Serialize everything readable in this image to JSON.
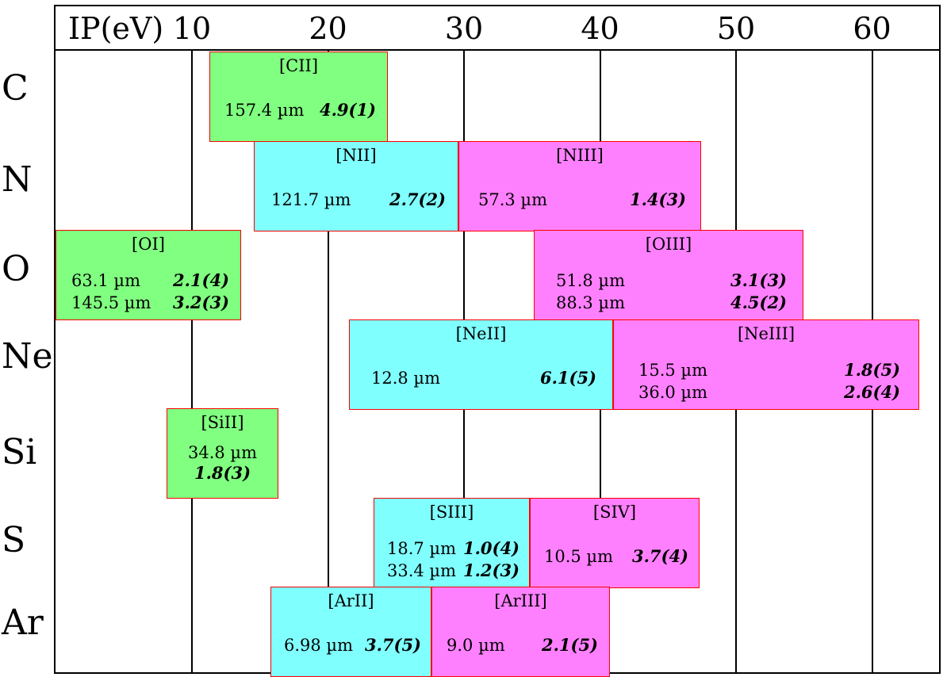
{
  "axis": {
    "title": "IP(eV)",
    "ticks": [
      "10",
      "20",
      "30",
      "40",
      "50",
      "60"
    ]
  },
  "colors": {
    "neutral": "#80ff80",
    "first_ion": "#80ffff",
    "second_ion": "#ff80ff",
    "border": "#ff0000"
  },
  "elements": [
    "C",
    "N",
    "O",
    "Ne",
    "Si",
    "S",
    "Ar"
  ],
  "lines": [
    {
      "element": "C",
      "ion": "[CII]",
      "ip_range": [
        11.26,
        24.38
      ],
      "kind": "neutral",
      "transitions": [
        {
          "wavelength": "157.4 µm",
          "value": "4.9(1)"
        }
      ]
    },
    {
      "element": "N",
      "ion": "[NII]",
      "ip_range": [
        14.53,
        29.6
      ],
      "kind": "first_ion",
      "transitions": [
        {
          "wavelength": "121.7 µm",
          "value": "2.7(2)"
        }
      ]
    },
    {
      "element": "N",
      "ion": "[NIII]",
      "ip_range": [
        29.6,
        47.45
      ],
      "kind": "second_ion",
      "transitions": [
        {
          "wavelength": "57.3 µm",
          "value": "1.4(3)"
        }
      ]
    },
    {
      "element": "O",
      "ion": "[OI]",
      "ip_range": [
        0,
        13.62
      ],
      "kind": "neutral",
      "transitions": [
        {
          "wavelength": "63.1 µm",
          "value": "2.1(4)"
        },
        {
          "wavelength": "145.5 µm",
          "value": "3.2(3)"
        }
      ]
    },
    {
      "element": "O",
      "ion": "[OIII]",
      "ip_range": [
        35.12,
        54.93
      ],
      "kind": "second_ion",
      "transitions": [
        {
          "wavelength": "51.8 µm",
          "value": "3.1(3)"
        },
        {
          "wavelength": "88.3 µm",
          "value": "4.5(2)"
        }
      ]
    },
    {
      "element": "Ne",
      "ion": "[NeII]",
      "ip_range": [
        21.56,
        40.96
      ],
      "kind": "first_ion",
      "transitions": [
        {
          "wavelength": "12.8 µm",
          "value": "6.1(5)"
        }
      ]
    },
    {
      "element": "Ne",
      "ion": "[NeIII]",
      "ip_range": [
        40.96,
        63.45
      ],
      "kind": "second_ion",
      "transitions": [
        {
          "wavelength": "15.5 µm",
          "value": "1.8(5)"
        },
        {
          "wavelength": "36.0 µm",
          "value": "2.6(4)"
        }
      ]
    },
    {
      "element": "Si",
      "ion": "[SiII]",
      "ip_range": [
        8.15,
        16.35
      ],
      "kind": "neutral",
      "transitions": [
        {
          "wavelength": "34.8 µm",
          "value": "1.8(3)"
        }
      ]
    },
    {
      "element": "S",
      "ion": "[SIII]",
      "ip_range": [
        23.33,
        34.83
      ],
      "kind": "first_ion",
      "transitions": [
        {
          "wavelength": "18.7 µm",
          "value": "1.0(4)"
        },
        {
          "wavelength": "33.4 µm",
          "value": "1.2(3)"
        }
      ]
    },
    {
      "element": "S",
      "ion": "[SIV]",
      "ip_range": [
        34.83,
        47.3
      ],
      "kind": "second_ion",
      "transitions": [
        {
          "wavelength": "10.5 µm",
          "value": "3.7(4)"
        }
      ]
    },
    {
      "element": "Ar",
      "ion": "[ArII]",
      "ip_range": [
        15.76,
        27.63
      ],
      "kind": "first_ion",
      "transitions": [
        {
          "wavelength": "6.98 µm",
          "value": "3.7(5)"
        }
      ]
    },
    {
      "element": "Ar",
      "ion": "[ArIII]",
      "ip_range": [
        27.63,
        40.74
      ],
      "kind": "second_ion",
      "transitions": [
        {
          "wavelength": "9.0 µm",
          "value": "2.1(5)"
        }
      ]
    }
  ]
}
